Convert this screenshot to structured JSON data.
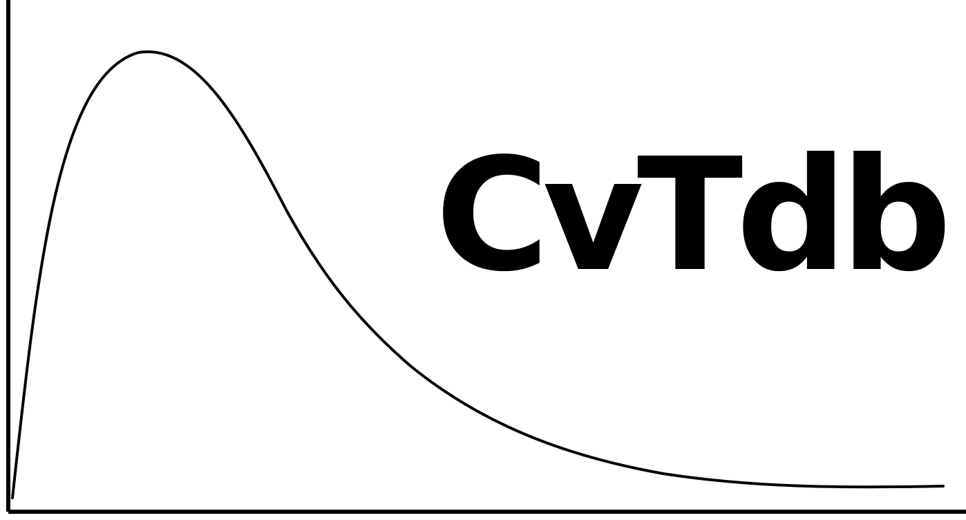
{
  "logo": {
    "wordmark": "CvTdb",
    "color": "#000000",
    "background": "#ffffff",
    "graphic": "right-skewed-distribution-curve"
  }
}
